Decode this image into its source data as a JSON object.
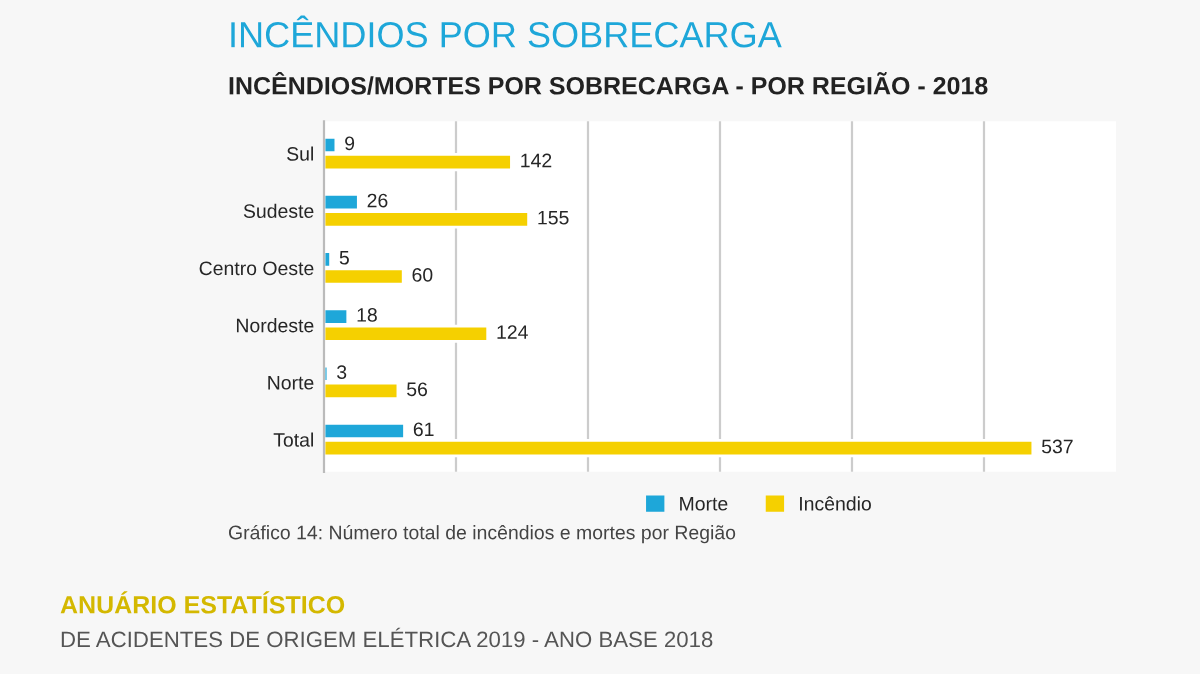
{
  "chart_data": {
    "type": "bar",
    "orientation": "horizontal",
    "title": "INCÊNDIOS POR SOBRECARGA",
    "subtitle": "INCÊNDIOS/MORTES POR SOBRECARGA - POR REGIÃO - 2018",
    "categories": [
      "Sul",
      "Sudeste",
      "Centro Oeste",
      "Nordeste",
      "Norte",
      "Total"
    ],
    "series": [
      {
        "name": "Morte",
        "color": "#1ea7d9",
        "values": [
          9,
          26,
          5,
          18,
          3,
          61
        ]
      },
      {
        "name": "Incêndio",
        "color": "#f5d000",
        "values": [
          142,
          155,
          60,
          124,
          56,
          537
        ]
      }
    ],
    "data_labels": true,
    "xlim": [
      0,
      600
    ],
    "xticks": [
      {
        "value": 100,
        "label": null
      },
      {
        "value": 200,
        "label": null
      },
      {
        "value": 300,
        "label": null
      },
      {
        "value": 400,
        "label": null
      },
      {
        "value": 500,
        "label": null
      }
    ],
    "tick_labels": "y",
    "grid": "x",
    "legend": "bottom",
    "annotations": [
      "Gráfico 14: Número total de incêndios e mortes por Região",
      "ANUÁRIO ESTATÍSTICO",
      "DE ACIDENTES DE ORIGEM ELÉTRICA 2019 - ANO BASE 2018"
    ]
  }
}
